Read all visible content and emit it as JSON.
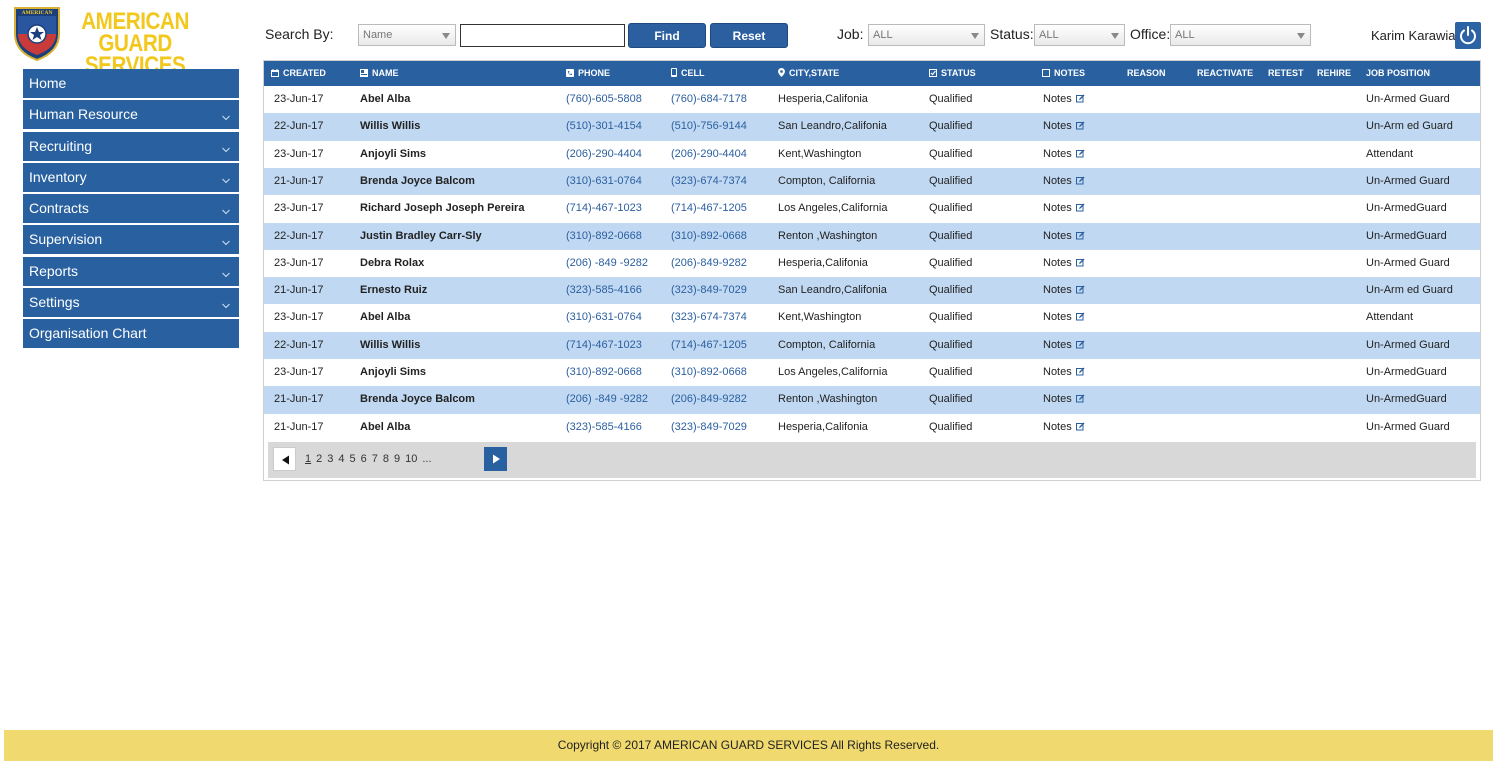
{
  "brand": {
    "line1": "AMERICAN",
    "line2": "GUARD SERVICES",
    "shield_text": "AMERICAN"
  },
  "sidebar": {
    "items": [
      {
        "label": "Home",
        "expandable": false
      },
      {
        "label": "Human Resource",
        "expandable": true
      },
      {
        "label": "Recruiting",
        "expandable": true
      },
      {
        "label": "Inventory",
        "expandable": true
      },
      {
        "label": "Contracts",
        "expandable": true
      },
      {
        "label": "Supervision",
        "expandable": true
      },
      {
        "label": "Reports",
        "expandable": true
      },
      {
        "label": "Settings",
        "expandable": true
      },
      {
        "label": "Organisation Chart",
        "expandable": false
      }
    ]
  },
  "toolbar": {
    "search_by_label": "Search By:",
    "search_by_value": "Name",
    "search_value": "",
    "find_label": "Find",
    "reset_label": "Reset",
    "job_label": "Job:",
    "job_value": "ALL",
    "status_label": "Status:",
    "status_value": "ALL",
    "office_label": "Office:",
    "office_value": "ALL",
    "user_name": "Karim Karawia"
  },
  "table": {
    "headers": {
      "created": "CREATED",
      "name": "NAME",
      "phone": "PHONE",
      "cell": "CELL",
      "city": "CITY,STATE",
      "status": "STATUS",
      "notes": "NOTES",
      "reason": "REASON",
      "reactivate": "REACTIVATE",
      "retest": "RETEST",
      "rehire": "REHIRE",
      "job_position": "JOB POSITION"
    },
    "rows": [
      {
        "created": "23-Jun-17",
        "name": "Abel Alba",
        "phone": "(760)-605-5808",
        "cell": "(760)-684-7178",
        "city": "Hesperia,Califonia",
        "status": "Qualified",
        "notes": "Notes",
        "job": "Un-Armed Guard"
      },
      {
        "created": "22-Jun-17",
        "name": "Willis Willis",
        "phone": "(510)-301-4154",
        "cell": "(510)-756-9144",
        "city": "San Leandro,Califonia",
        "status": "Qualified",
        "notes": "Notes",
        "job": "Un-Arm ed Guard"
      },
      {
        "created": "23-Jun-17",
        "name": "Anjoyli  Sims",
        "phone": "(206)-290-4404",
        "cell": "(206)-290-4404",
        "city": "Kent,Washington",
        "status": "Qualified",
        "notes": "Notes",
        "job": "Attendant"
      },
      {
        "created": "21-Jun-17",
        "name": "Brenda Joyce  Balcom",
        "phone": "(310)-631-0764",
        "cell": "(323)-674-7374",
        "city": "Compton, California",
        "status": "Qualified",
        "notes": "Notes",
        "job": "Un-Armed Guard"
      },
      {
        "created": "23-Jun-17",
        "name": "Richard  Joseph  Joseph  Pereira",
        "phone": "(714)-467-1023",
        "cell": "(714)-467-1205",
        "city": "Los Angeles,California",
        "status": "Qualified",
        "notes": "Notes",
        "job": "Un-ArmedGuard"
      },
      {
        "created": "22-Jun-17",
        "name": "Justin   Bradley Carr-Sly",
        "phone": "(310)-892-0668",
        "cell": "(310)-892-0668",
        "city": "Renton ,Washington",
        "status": "Qualified",
        "notes": "Notes",
        "job": "Un-ArmedGuard"
      },
      {
        "created": "23-Jun-17",
        "name": "Debra Rolax",
        "phone": "(206) -849 -9282",
        "cell": "(206)-849-9282",
        "city": "Hesperia,Califonia",
        "status": "Qualified",
        "notes": "Notes",
        "job": "Un-Armed Guard"
      },
      {
        "created": "21-Jun-17",
        "name": "Ernesto Ruiz",
        "phone": "(323)-585-4166",
        "cell": "(323)-849-7029",
        "city": "San Leandro,Califonia",
        "status": "Qualified",
        "notes": "Notes",
        "job": "Un-Arm ed Guard"
      },
      {
        "created": "23-Jun-17",
        "name": "Abel Alba",
        "phone": "(310)-631-0764",
        "cell": "(323)-674-7374",
        "city": "Kent,Washington",
        "status": "Qualified",
        "notes": "Notes",
        "job": "Attendant"
      },
      {
        "created": "22-Jun-17",
        "name": "Willis Willis",
        "phone": "(714)-467-1023",
        "cell": "(714)-467-1205",
        "city": "Compton, California",
        "status": "Qualified",
        "notes": "Notes",
        "job": "Un-Armed Guard"
      },
      {
        "created": "23-Jun-17",
        "name": "Anjoyli  Sims",
        "phone": "(310)-892-0668",
        "cell": "(310)-892-0668",
        "city": "Los Angeles,California",
        "status": "Qualified",
        "notes": "Notes",
        "job": "Un-ArmedGuard"
      },
      {
        "created": "21-Jun-17",
        "name": "Brenda Joyce  Balcom",
        "phone": "(206) -849 -9282",
        "cell": "(206)-849-9282",
        "city": "Renton ,Washington",
        "status": "Qualified",
        "notes": "Notes",
        "job": "Un-ArmedGuard"
      },
      {
        "created": "21-Jun-17",
        "name": "Abel Alba",
        "phone": "(323)-585-4166",
        "cell": "(323)-849-7029",
        "city": "Hesperia,Califonia",
        "status": "Qualified",
        "notes": "Notes",
        "job": "Un-Armed Guard"
      }
    ]
  },
  "pagination": {
    "pages": [
      "1",
      "2",
      "3",
      "4",
      "5",
      "6",
      "7",
      "8",
      "9",
      "10",
      "..."
    ],
    "current": "1"
  },
  "footer": {
    "text": "Copyright © 2017 AMERICAN GUARD SERVICES All Rights Reserved."
  },
  "colors": {
    "primary": "#2960a0",
    "row_alt": "#c0d8f2",
    "brand_yellow": "#f2c81c",
    "footer_bg": "#f0d96e"
  },
  "icons": [
    "shield-logo-icon",
    "chevron-down-icon",
    "caret-down-icon",
    "power-icon",
    "calendar-icon",
    "id-card-icon",
    "phone-icon",
    "mobile-icon",
    "map-pin-icon",
    "checkbox-icon",
    "note-icon",
    "edit-icon",
    "arrow-left-icon",
    "arrow-right-icon"
  ]
}
